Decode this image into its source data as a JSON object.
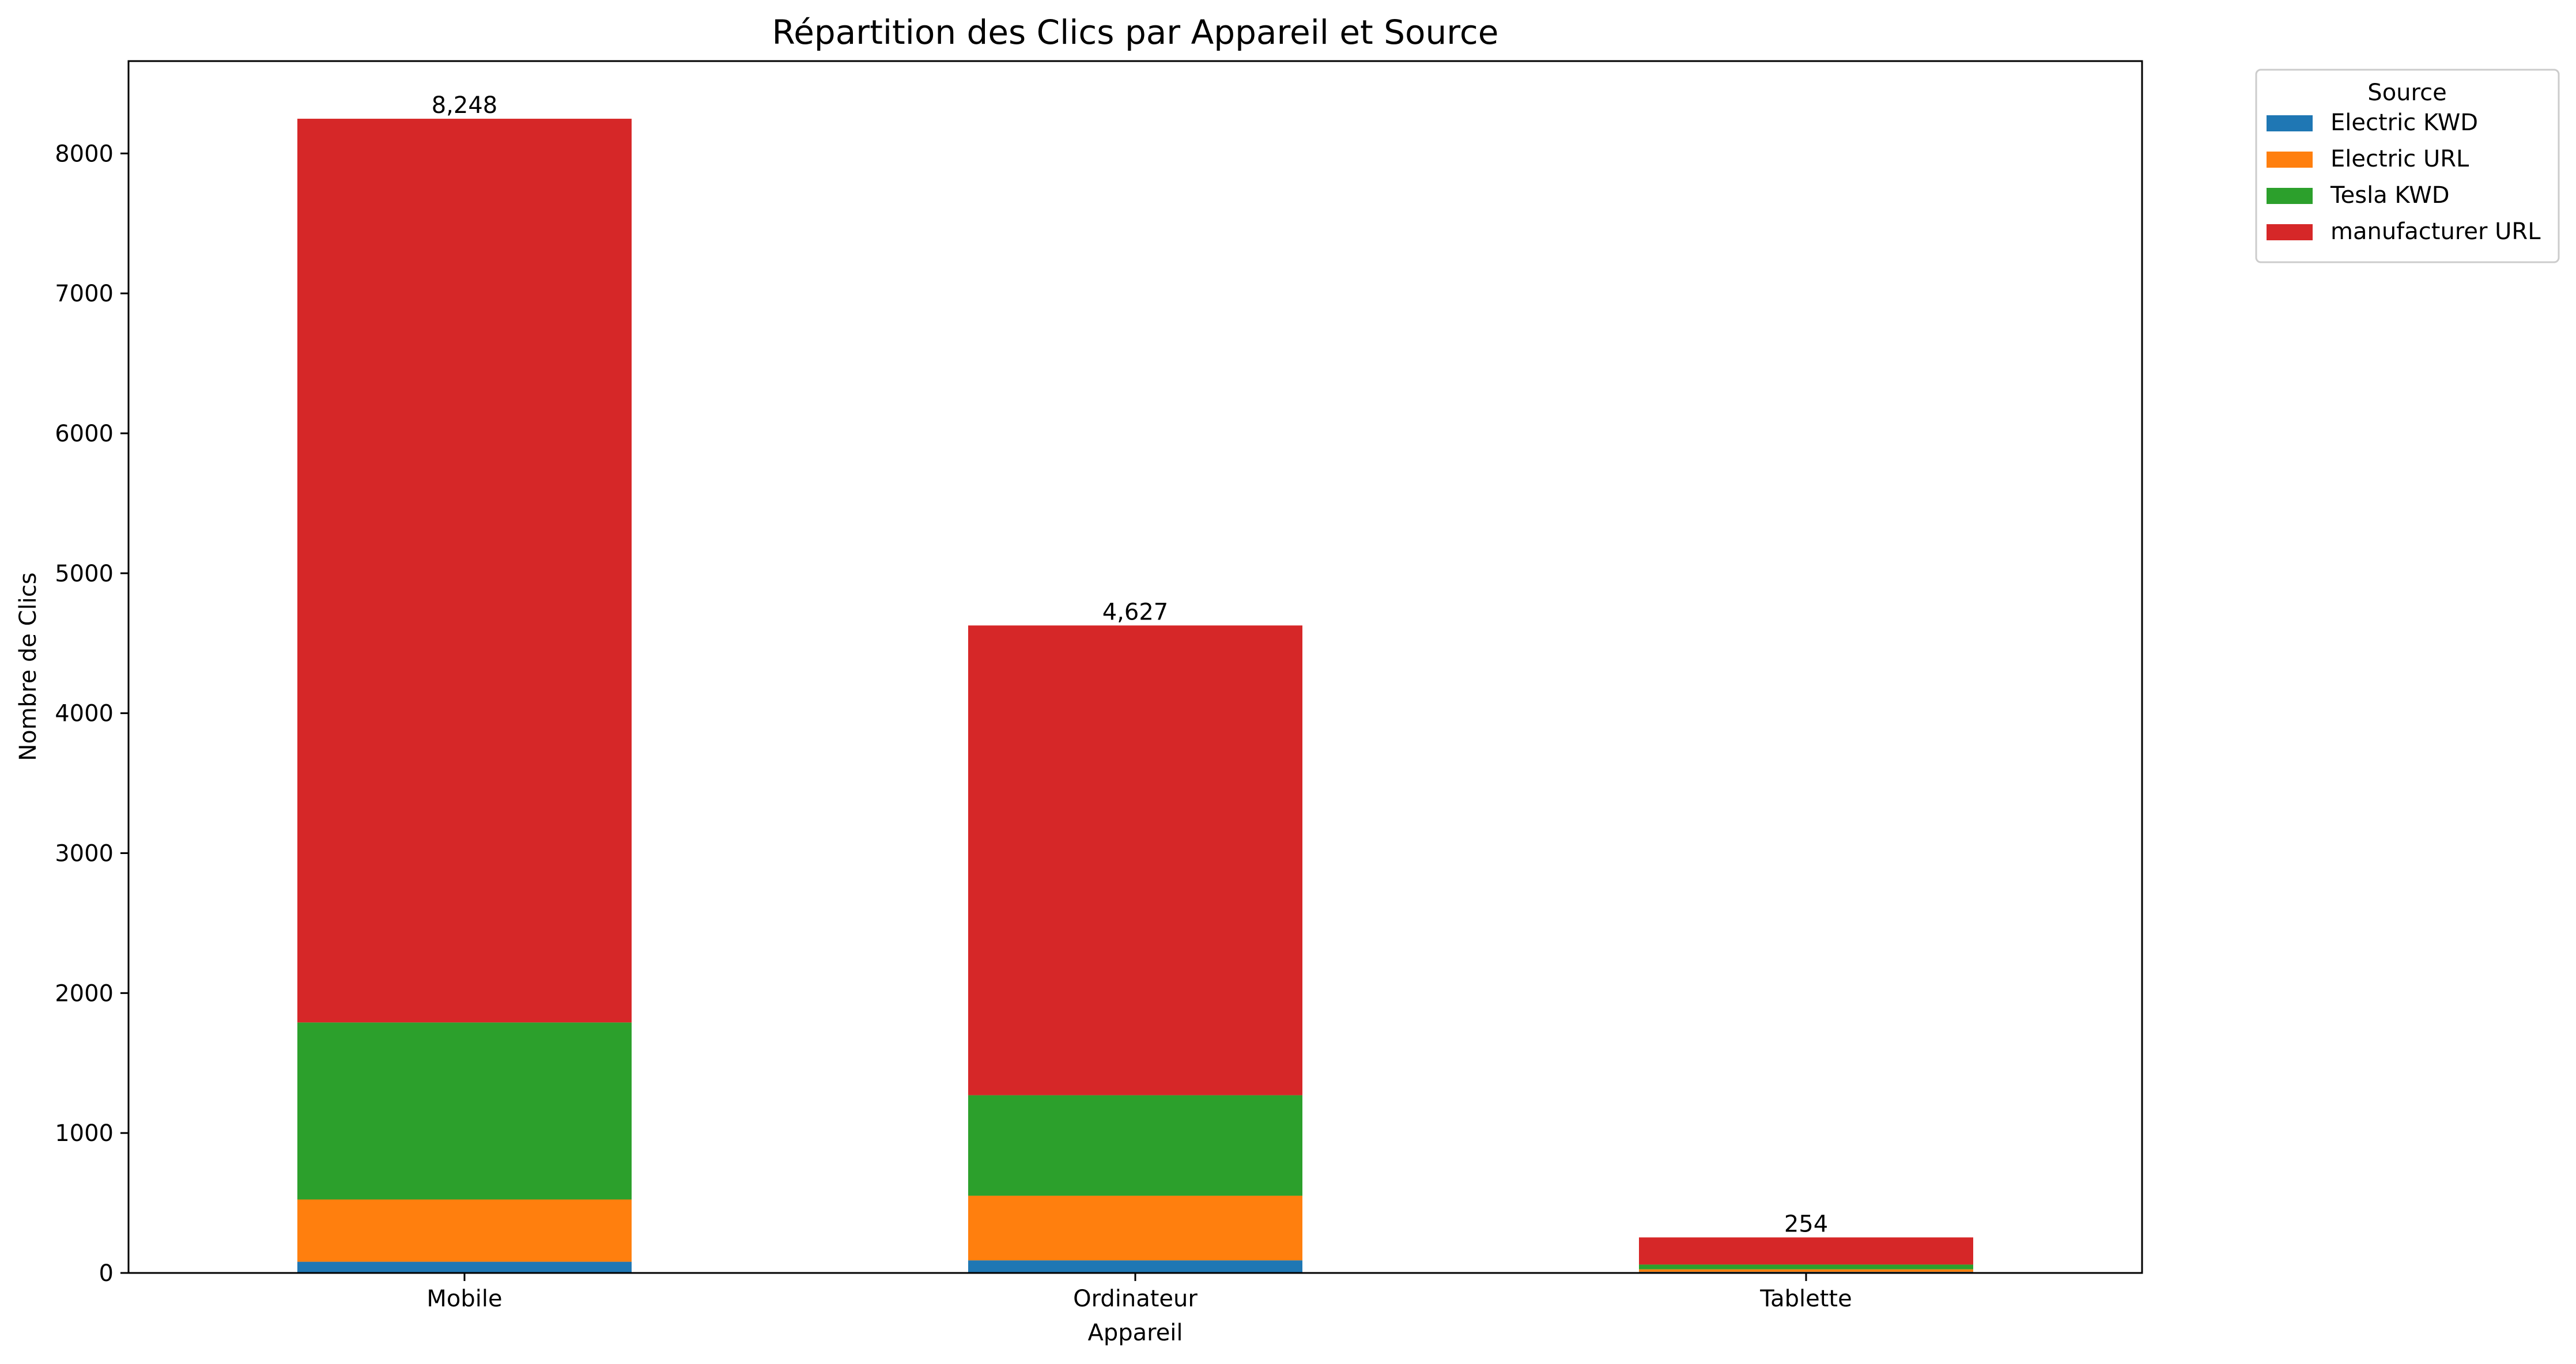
{
  "chart_data": {
    "type": "bar",
    "stacked": true,
    "title": "Répartition des Clics par Appareil et Source",
    "xlabel": "Appareil",
    "ylabel": "Nombre de Clics",
    "categories": [
      "Mobile",
      "Ordinateur",
      "Tablette"
    ],
    "ylim": [
      0,
      8660
    ],
    "yticks": [
      0,
      1000,
      2000,
      3000,
      4000,
      5000,
      6000,
      7000,
      8000
    ],
    "series": [
      {
        "name": "Electric KWD",
        "color": "#1f77b4",
        "values": [
          80,
          90,
          8
        ]
      },
      {
        "name": "Electric URL",
        "color": "#ff7f0e",
        "values": [
          445,
          462,
          18
        ]
      },
      {
        "name": "Tesla KWD",
        "color": "#2ca02c",
        "values": [
          1265,
          718,
          34
        ]
      },
      {
        "name": "manufacturer URL",
        "color": "#d62728",
        "values": [
          6458,
          3357,
          194
        ]
      }
    ],
    "totals": [
      "8,248",
      "4,627",
      "254"
    ],
    "legend": {
      "title": "Source",
      "placement": "outside-top-right"
    },
    "grid": false
  }
}
